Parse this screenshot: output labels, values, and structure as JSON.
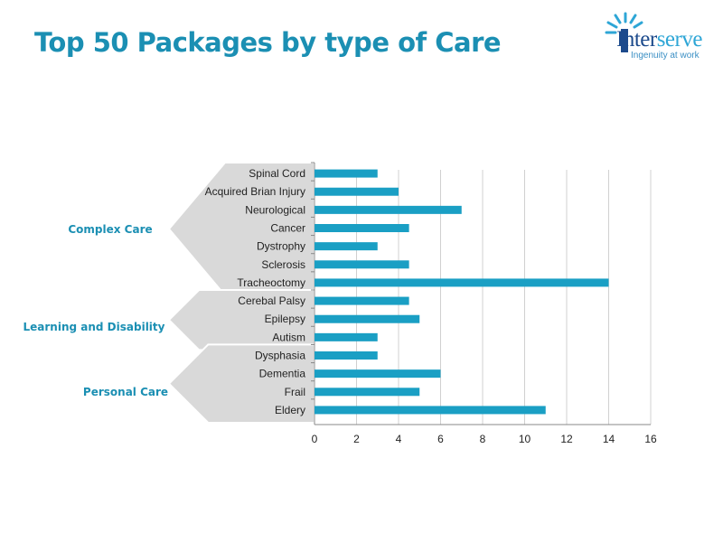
{
  "title": "Top 50 Packages by type of Care",
  "logo": {
    "word_part1": "Inter",
    "word_part2": "serve",
    "tagline": "Ingenuity at work"
  },
  "colors": {
    "title": "#1b8fb3",
    "bar": "#1a9fc4",
    "arrow_fill": "#d9d9d9",
    "grid": "#d0d0d0"
  },
  "chart_data": {
    "type": "bar",
    "orientation": "horizontal",
    "categories": [
      "Spinal Cord",
      "Acquired Brian Injury",
      "Neurological",
      "Cancer",
      "Dystrophy",
      "Sclerosis",
      "Tracheoctomy",
      "Cerebal Palsy",
      "Epilepsy",
      "Autism",
      "Dysphasia",
      "Dementia",
      "Frail",
      "Eldery"
    ],
    "values": [
      3,
      4,
      7,
      4.5,
      3,
      4.5,
      14,
      4.5,
      5,
      3,
      3,
      6,
      5,
      11
    ],
    "xlim": [
      0,
      16
    ],
    "xticks": [
      0,
      2,
      4,
      6,
      8,
      10,
      12,
      14,
      16
    ],
    "grid": "vertical",
    "legend": "none",
    "groups": [
      {
        "label": "Complex Care",
        "categories": [
          "Spinal Cord",
          "Acquired Brian Injury",
          "Neurological",
          "Cancer",
          "Dystrophy",
          "Sclerosis",
          "Tracheoctomy"
        ]
      },
      {
        "label": "Learning and Disability",
        "categories": [
          "Cerebal Palsy",
          "Epilepsy",
          "Autism"
        ]
      },
      {
        "label": "Personal Care",
        "categories": [
          "Dysphasia",
          "Dementia",
          "Frail",
          "Eldery"
        ]
      }
    ]
  }
}
